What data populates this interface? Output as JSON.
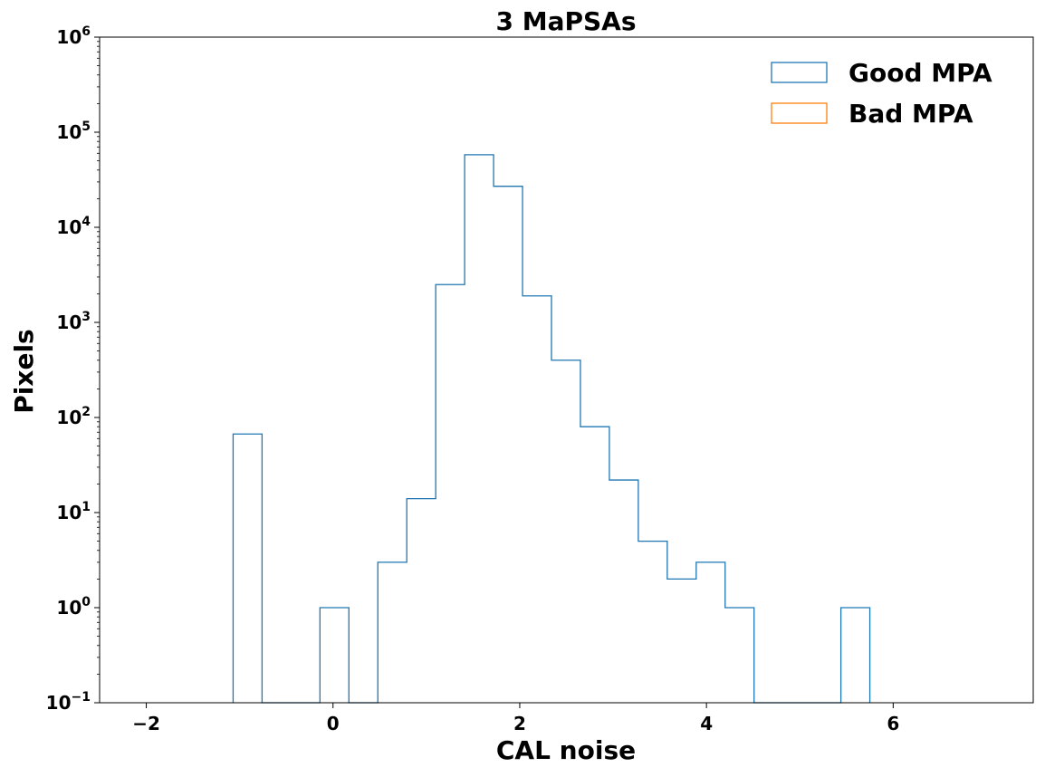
{
  "chart_data": {
    "type": "histogram",
    "title": "3 MaPSAs",
    "xlabel": "CAL noise",
    "ylabel": "Pixels",
    "xlim": [
      -2.5,
      7.5
    ],
    "ylim": [
      0.1,
      1000000
    ],
    "yscale": "log",
    "xticks": [
      -2,
      0,
      2,
      4,
      6
    ],
    "xtick_labels": [
      "−2",
      "0",
      "2",
      "4",
      "6"
    ],
    "yticks": [
      {
        "value": 0.1,
        "base": "10",
        "exp": "−1"
      },
      {
        "value": 1,
        "base": "10",
        "exp": "0"
      },
      {
        "value": 10,
        "base": "10",
        "exp": "1"
      },
      {
        "value": 100,
        "base": "10",
        "exp": "2"
      },
      {
        "value": 1000,
        "base": "10",
        "exp": "3"
      },
      {
        "value": 10000,
        "base": "10",
        "exp": "4"
      },
      {
        "value": 100000,
        "base": "10",
        "exp": "5"
      },
      {
        "value": 1000000,
        "base": "10",
        "exp": "6"
      }
    ],
    "grid": false,
    "legend_position": "top-right",
    "bin_edges": [
      -1.07,
      -0.76,
      -0.45,
      -0.14,
      0.17,
      0.48,
      0.79,
      1.1,
      1.41,
      1.72,
      2.03,
      2.34,
      2.65,
      2.96,
      3.27,
      3.58,
      3.89,
      4.2,
      4.51,
      4.82,
      5.13,
      5.44,
      5.75
    ],
    "series": [
      {
        "name": "Good MPA",
        "color": "#1f77b4",
        "counts": [
          67,
          0,
          0,
          1,
          0,
          3,
          14,
          2500,
          58000,
          27000,
          1900,
          400,
          80,
          22,
          5,
          2,
          3,
          1,
          0,
          0,
          0,
          1
        ]
      },
      {
        "name": "Bad MPA",
        "color": "#ff7f0e",
        "counts": []
      }
    ]
  }
}
